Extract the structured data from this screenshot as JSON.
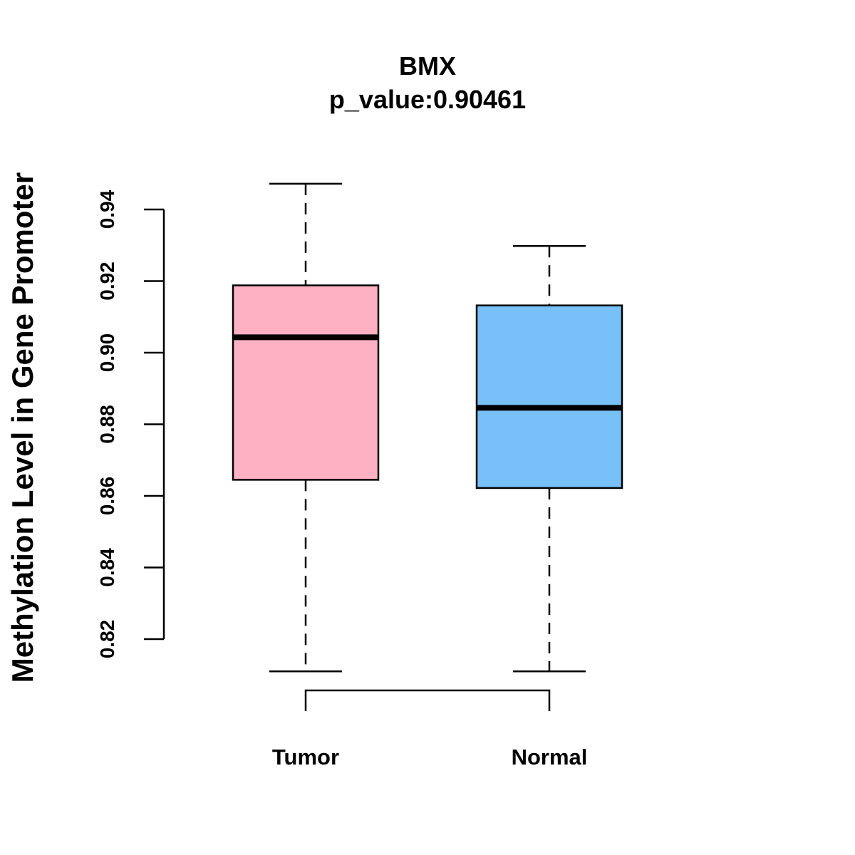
{
  "chart_data": {
    "type": "boxplot",
    "title": "BMX",
    "subtitle": "p_value:0.90461",
    "xlabel": "",
    "ylabel": "Methylation Level in Gene Promoter",
    "categories": [
      "Tumor",
      "Normal"
    ],
    "y_ticks": [
      "0.82",
      "0.84",
      "0.86",
      "0.88",
      "0.90",
      "0.92",
      "0.94"
    ],
    "ylim": [
      0.82,
      0.94
    ],
    "grid": false,
    "boxes": [
      {
        "label": "Tumor",
        "whisker_low": 0.811,
        "q1": 0.8645,
        "median": 0.9043,
        "q3": 0.9188,
        "whisker_high": 0.9472,
        "color": "#FDB1C3"
      },
      {
        "label": "Normal",
        "whisker_low": 0.811,
        "q1": 0.8622,
        "median": 0.8846,
        "q3": 0.9132,
        "whisker_high": 0.9298,
        "color": "#78C1F8"
      }
    ],
    "comparison_bracket": [
      "Tumor",
      "Normal"
    ]
  }
}
